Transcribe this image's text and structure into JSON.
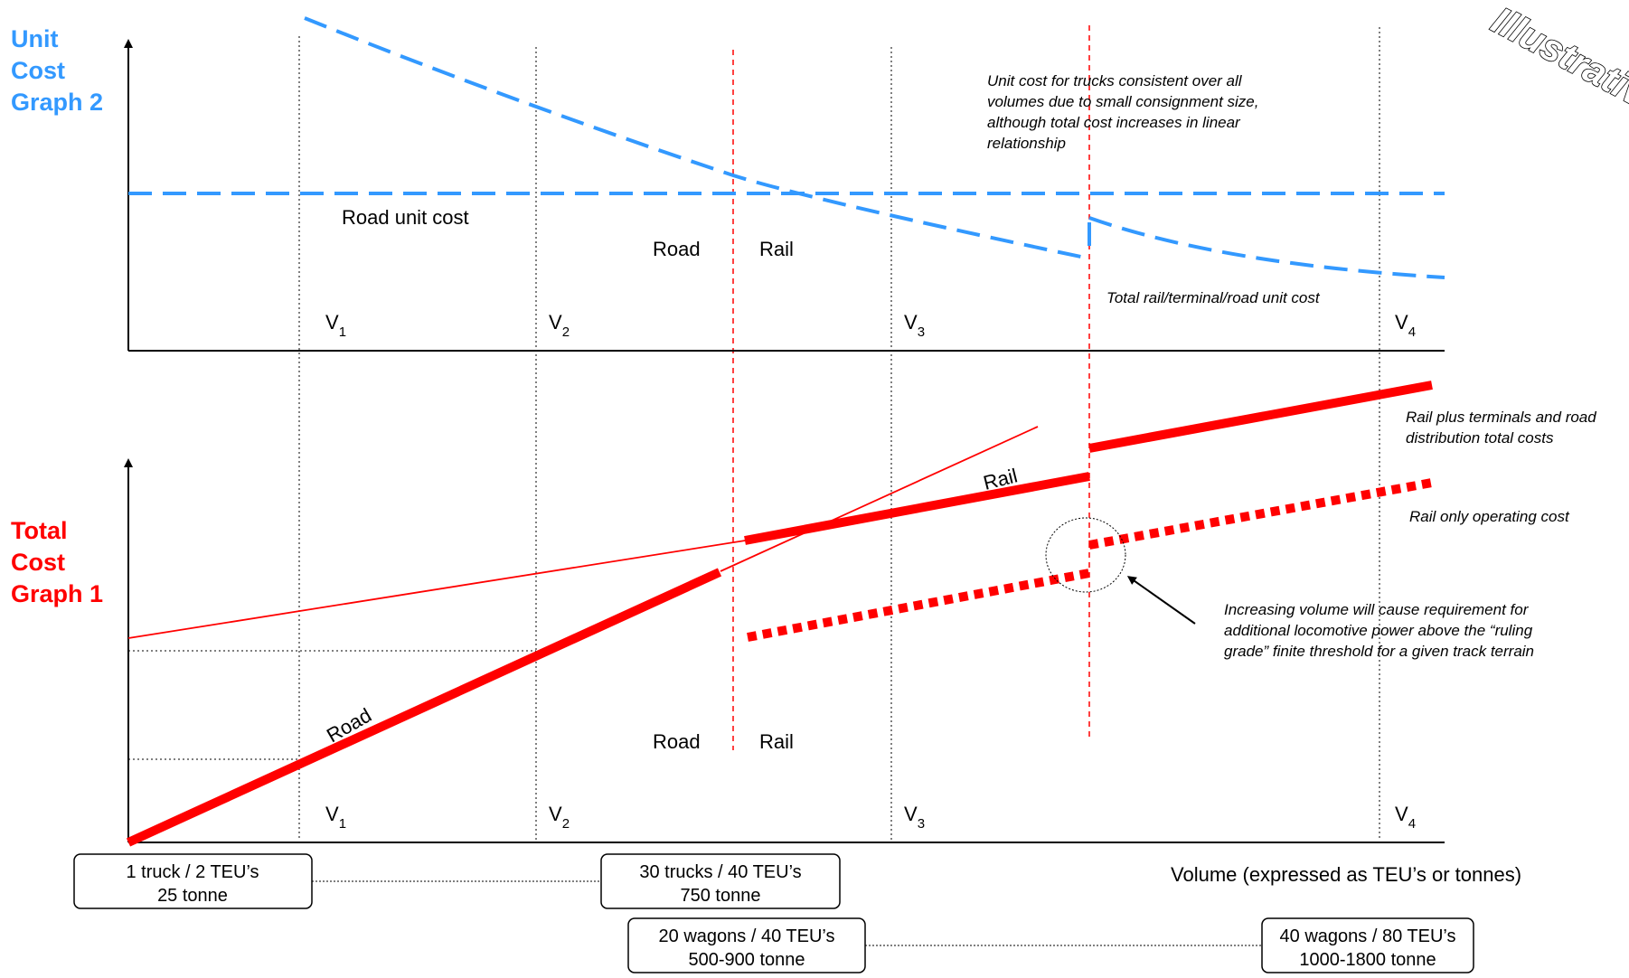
{
  "stamp": "Illustrative",
  "unit_graph": {
    "title_lines": [
      "Unit",
      "Cost",
      "Graph 2"
    ],
    "title_color": "#3399ff",
    "road_unit_cost_label": "Road unit cost",
    "road_label": "Road",
    "rail_label": "Rail",
    "truck_note_lines": [
      "Unit cost for trucks consistent over all",
      "volumes due to small consignment size,",
      "although total cost increases in linear",
      "relationship"
    ],
    "rail_total_note": "Total rail/terminal/road unit cost",
    "v_labels": [
      {
        "main": "V",
        "sub": "1"
      },
      {
        "main": "V",
        "sub": "2"
      },
      {
        "main": "V",
        "sub": "3"
      },
      {
        "main": "V",
        "sub": "4"
      }
    ]
  },
  "total_graph": {
    "title_lines": [
      "Total",
      "Cost",
      "Graph 1"
    ],
    "title_color": "#ff0000",
    "road_line_label": "Road",
    "rail_line_label": "Rail",
    "road_label": "Road",
    "rail_label": "Rail",
    "rail_plus_note_lines": [
      "Rail plus terminals and road",
      "distribution total costs"
    ],
    "rail_only_note": "Rail only operating cost",
    "increasing_note_lines": [
      "Increasing volume will cause requirement for",
      "additional locomotive power above the “ruling",
      "grade” finite threshold for a given track terrain"
    ],
    "v_labels": [
      {
        "main": "V",
        "sub": "1"
      },
      {
        "main": "V",
        "sub": "2"
      },
      {
        "main": "V",
        "sub": "3"
      },
      {
        "main": "V",
        "sub": "4"
      }
    ]
  },
  "x_axis_label": "Volume (expressed as TEU’s or tonnes)",
  "boxes": [
    {
      "line1": "1 truck / 2 TEU’s",
      "line2": "25 tonne"
    },
    {
      "line1": "30 trucks / 40 TEU’s",
      "line2": "750 tonne"
    },
    {
      "line1": "20 wagons / 40 TEU’s",
      "line2": "500-900 tonne"
    },
    {
      "line1": "40 wagons / 80 TEU’s",
      "line2": "1000-1800 tonne"
    }
  ],
  "colors": {
    "blue": "#3399ff",
    "red": "#ff0000",
    "axis": "#000000"
  }
}
